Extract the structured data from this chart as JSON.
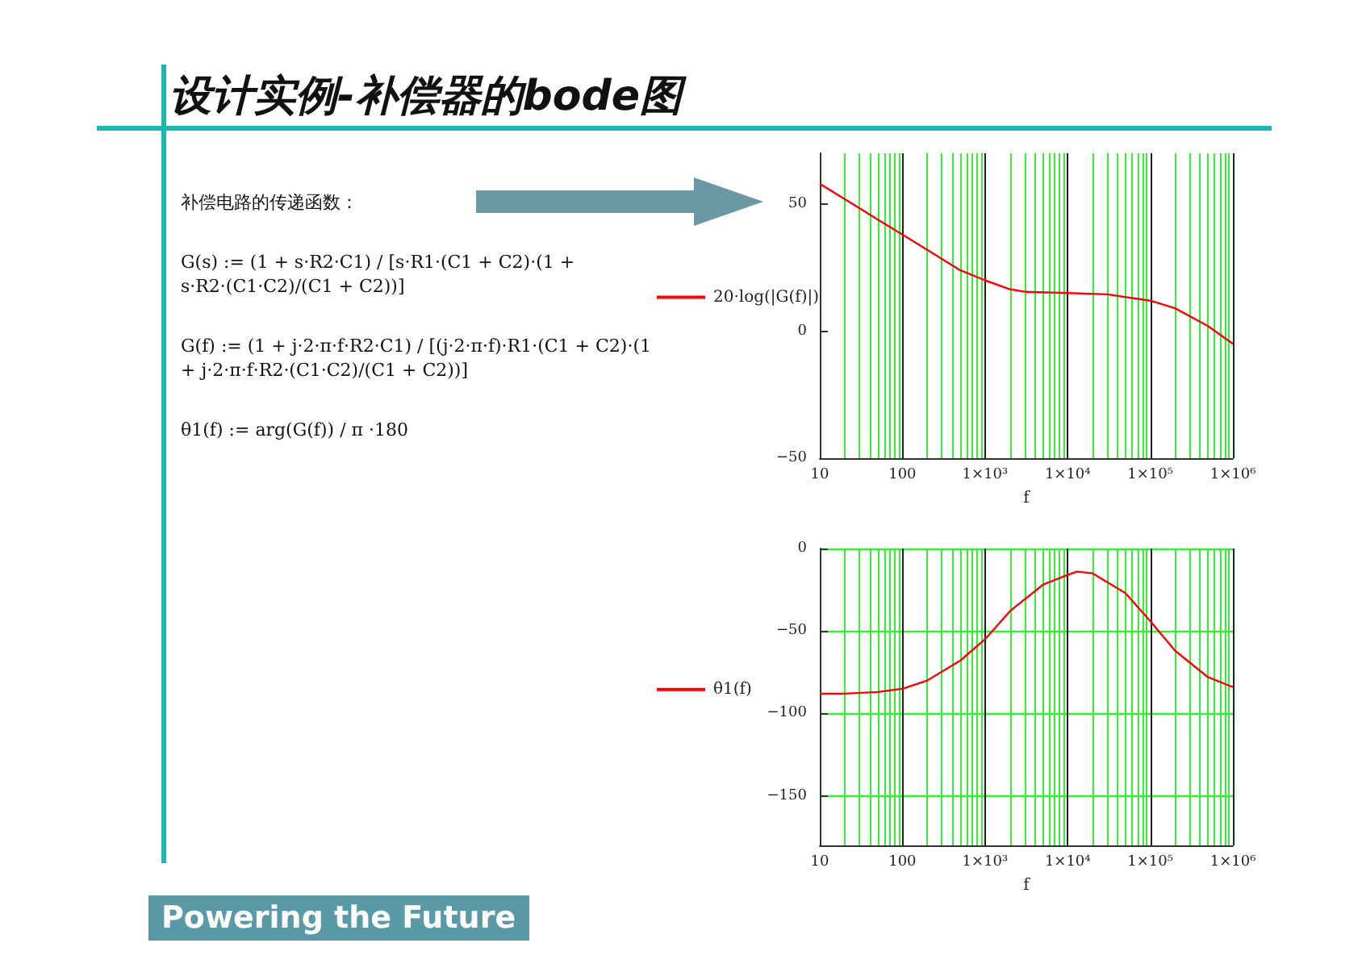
{
  "chart_data": [
    {
      "type": "line",
      "title": "设计实例-补偿器的bode图",
      "xlabel": "f",
      "annotations": [
        "补偿电路的传递函数：",
        "G(s) := (1 + s·R2·C1) / [s·R1·(C1 + C2)·(1 + s·R2·(C1·C2)/(C1 + C2))]",
        "G(f) := (1 + j·2·π·f·R2·C1) / [(j·2·π·f)·R1·(C1 + C2)·(1 + j·2·π·f·R2·(C1·C2)/(C1 + C2))]",
        "θ1(f) := arg(G(f)) / π ·180",
        "Powering the Future"
      ],
      "series": [
        {
          "name": "20·log(|G(f)|)",
          "color": "#ff0000",
          "x": [
            10,
            20,
            50,
            100,
            200,
            500,
            1000,
            2000,
            3000,
            10000,
            30000,
            100000,
            200000,
            500000,
            1000000
          ],
          "values": [
            58,
            52,
            44,
            38,
            32,
            24,
            20,
            16.5,
            15.5,
            15,
            14.5,
            12,
            9,
            2,
            -5
          ]
        }
      ],
      "log": "x",
      "xlim": [
        10,
        1000000
      ],
      "xticks": [
        {
          "value": 10,
          "label": "10"
        },
        {
          "value": 20,
          "label": null
        },
        {
          "value": 30,
          "label": null
        },
        {
          "value": 40,
          "label": null
        },
        {
          "value": 50,
          "label": null
        },
        {
          "value": 60,
          "label": null
        },
        {
          "value": 70,
          "label": null
        },
        {
          "value": 80,
          "label": null
        },
        {
          "value": 90,
          "label": null
        },
        {
          "value": 100,
          "label": "100"
        },
        {
          "value": 200,
          "label": null
        },
        {
          "value": 300,
          "label": null
        },
        {
          "value": 400,
          "label": null
        },
        {
          "value": 500,
          "label": null
        },
        {
          "value": 600,
          "label": null
        },
        {
          "value": 700,
          "label": null
        },
        {
          "value": 800,
          "label": null
        },
        {
          "value": 900,
          "label": null
        },
        {
          "value": 1000,
          "label": "1×10³"
        },
        {
          "value": 2000,
          "label": null
        },
        {
          "value": 3000,
          "label": null
        },
        {
          "value": 4000,
          "label": null
        },
        {
          "value": 5000,
          "label": null
        },
        {
          "value": 6000,
          "label": null
        },
        {
          "value": 7000,
          "label": null
        },
        {
          "value": 8000,
          "label": null
        },
        {
          "value": 9000,
          "label": null
        },
        {
          "value": 10000,
          "label": "1×10⁴"
        },
        {
          "value": 20000,
          "label": null
        },
        {
          "value": 30000,
          "label": null
        },
        {
          "value": 40000,
          "label": null
        },
        {
          "value": 50000,
          "label": null
        },
        {
          "value": 60000,
          "label": null
        },
        {
          "value": 70000,
          "label": null
        },
        {
          "value": 80000,
          "label": null
        },
        {
          "value": 90000,
          "label": null
        },
        {
          "value": 100000,
          "label": "1×10⁵"
        },
        {
          "value": 200000,
          "label": null
        },
        {
          "value": 300000,
          "label": null
        },
        {
          "value": 400000,
          "label": null
        },
        {
          "value": 500000,
          "label": null
        },
        {
          "value": 600000,
          "label": null
        },
        {
          "value": 700000,
          "label": null
        },
        {
          "value": 800000,
          "label": null
        },
        {
          "value": 900000,
          "label": null
        },
        {
          "value": 1000000,
          "label": "1×10⁶"
        }
      ],
      "ylim": [
        -50,
        70
      ],
      "yticks": [
        -50,
        0,
        50
      ],
      "grid": "x",
      "legend": "left",
      "marker": "none",
      "line_style": "solid"
    },
    {
      "type": "line",
      "xlabel": "f",
      "series": [
        {
          "name": "θ1(f)",
          "color": "#ff0000",
          "x": [
            10,
            20,
            50,
            100,
            200,
            500,
            1000,
            2000,
            5000,
            10000,
            13000,
            20000,
            50000,
            100000,
            200000,
            500000,
            1000000
          ],
          "values": [
            -88,
            -88,
            -87,
            -85,
            -80,
            -68,
            -55,
            -38,
            -22,
            -16,
            -14,
            -15,
            -27,
            -44,
            -62,
            -78,
            -84
          ]
        }
      ],
      "log": "x",
      "xlim": [
        10,
        1000000
      ],
      "xticks": [
        {
          "value": 10,
          "label": "10"
        },
        {
          "value": 20,
          "label": null
        },
        {
          "value": 30,
          "label": null
        },
        {
          "value": 40,
          "label": null
        },
        {
          "value": 50,
          "label": null
        },
        {
          "value": 60,
          "label": null
        },
        {
          "value": 70,
          "label": null
        },
        {
          "value": 80,
          "label": null
        },
        {
          "value": 90,
          "label": null
        },
        {
          "value": 100,
          "label": "100"
        },
        {
          "value": 200,
          "label": null
        },
        {
          "value": 300,
          "label": null
        },
        {
          "value": 400,
          "label": null
        },
        {
          "value": 500,
          "label": null
        },
        {
          "value": 600,
          "label": null
        },
        {
          "value": 700,
          "label": null
        },
        {
          "value": 800,
          "label": null
        },
        {
          "value": 900,
          "label": null
        },
        {
          "value": 1000,
          "label": "1×10³"
        },
        {
          "value": 2000,
          "label": null
        },
        {
          "value": 3000,
          "label": null
        },
        {
          "value": 4000,
          "label": null
        },
        {
          "value": 5000,
          "label": null
        },
        {
          "value": 6000,
          "label": null
        },
        {
          "value": 7000,
          "label": null
        },
        {
          "value": 8000,
          "label": null
        },
        {
          "value": 9000,
          "label": null
        },
        {
          "value": 10000,
          "label": "1×10⁴"
        },
        {
          "value": 20000,
          "label": null
        },
        {
          "value": 30000,
          "label": null
        },
        {
          "value": 40000,
          "label": null
        },
        {
          "value": 50000,
          "label": null
        },
        {
          "value": 60000,
          "label": null
        },
        {
          "value": 70000,
          "label": null
        },
        {
          "value": 80000,
          "label": null
        },
        {
          "value": 90000,
          "label": null
        },
        {
          "value": 100000,
          "label": "1×10⁵"
        },
        {
          "value": 200000,
          "label": null
        },
        {
          "value": 300000,
          "label": null
        },
        {
          "value": 400000,
          "label": null
        },
        {
          "value": 500000,
          "label": null
        },
        {
          "value": 600000,
          "label": null
        },
        {
          "value": 700000,
          "label": null
        },
        {
          "value": 800000,
          "label": null
        },
        {
          "value": 900000,
          "label": null
        },
        {
          "value": 1000000,
          "label": "1×10⁶"
        }
      ],
      "ylim": [
        -180,
        0
      ],
      "yticks": [
        -150,
        -100,
        -50,
        0
      ],
      "grid": true,
      "legend": "left",
      "marker": "none",
      "line_style": "solid"
    }
  ]
}
